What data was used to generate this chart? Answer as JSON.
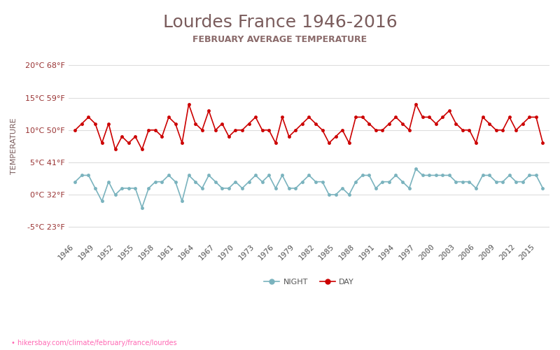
{
  "title": "Lourdes France 1946-2016",
  "subtitle": "FEBRUARY AVERAGE TEMPERATURE",
  "ylabel": "TEMPERATURE",
  "url": "hikersbay.com/climate/february/france/lourdes",
  "years": [
    1946,
    1947,
    1948,
    1949,
    1950,
    1951,
    1952,
    1953,
    1954,
    1955,
    1956,
    1957,
    1958,
    1959,
    1960,
    1961,
    1962,
    1963,
    1964,
    1965,
    1966,
    1967,
    1968,
    1969,
    1970,
    1971,
    1972,
    1973,
    1974,
    1975,
    1976,
    1977,
    1978,
    1979,
    1980,
    1981,
    1982,
    1983,
    1984,
    1985,
    1986,
    1987,
    1988,
    1989,
    1990,
    1991,
    1992,
    1993,
    1994,
    1995,
    1996,
    1997,
    1998,
    1999,
    2000,
    2001,
    2002,
    2003,
    2004,
    2005,
    2006,
    2007,
    2008,
    2009,
    2010,
    2011,
    2012,
    2013,
    2014,
    2015,
    2016
  ],
  "day": [
    10,
    11,
    12,
    11,
    8,
    11,
    7,
    9,
    8,
    9,
    7,
    10,
    10,
    9,
    12,
    11,
    8,
    14,
    11,
    10,
    13,
    10,
    11,
    9,
    10,
    10,
    11,
    12,
    10,
    10,
    8,
    12,
    9,
    10,
    11,
    12,
    11,
    10,
    8,
    9,
    10,
    8,
    12,
    12,
    11,
    10,
    10,
    11,
    12,
    11,
    10,
    14,
    12,
    12,
    11,
    12,
    13,
    11,
    10,
    10,
    8,
    12,
    11,
    10,
    10,
    12,
    10,
    11,
    12,
    12,
    8
  ],
  "night": [
    2,
    3,
    3,
    1,
    -1,
    2,
    0,
    1,
    1,
    1,
    -2,
    1,
    2,
    2,
    3,
    2,
    -1,
    3,
    2,
    1,
    3,
    2,
    1,
    1,
    2,
    1,
    2,
    3,
    2,
    3,
    1,
    3,
    1,
    1,
    2,
    3,
    2,
    2,
    0,
    0,
    1,
    0,
    2,
    3,
    3,
    1,
    2,
    2,
    3,
    2,
    1,
    4,
    3,
    3,
    3,
    3,
    3,
    2,
    2,
    2,
    1,
    3,
    3,
    2,
    2,
    3,
    2,
    2,
    3,
    3,
    1
  ],
  "day_color": "#cc0000",
  "night_color": "#7ab3be",
  "bg_color": "#ffffff",
  "grid_color": "#dddddd",
  "title_color": "#7a5c5c",
  "subtitle_color": "#8a6a6a",
  "axis_label_color": "#7a5c5c",
  "tick_label_color": "#993333",
  "ylim": [
    -7,
    22
  ],
  "yticks": [
    -5,
    0,
    5,
    10,
    15,
    20
  ],
  "ytick_labels_c": [
    "-5°C 23°F",
    "0°C 32°F",
    "5°C 41°F",
    "10°C 50°F",
    "15°C 59°F",
    "20°C 68°F"
  ],
  "legend_night": "NIGHT",
  "legend_day": "DAY",
  "title_fontsize": 18,
  "subtitle_fontsize": 9,
  "tick_fontsize": 8,
  "ylabel_fontsize": 8
}
